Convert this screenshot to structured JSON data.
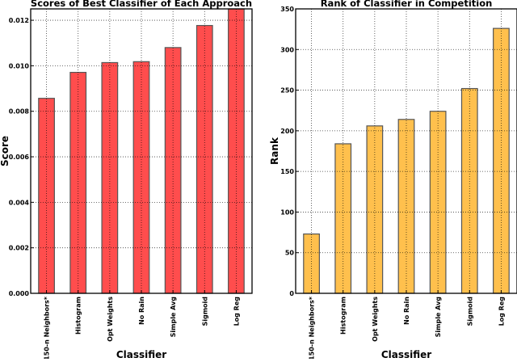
{
  "chart_data": [
    {
      "type": "bar",
      "title": "Scores of Best Classifier of Each Approach",
      "xlabel": "Classifier",
      "ylabel": "Score",
      "categories": [
        "150-n Neighbors*",
        "Histogram",
        "Opt Weights",
        "No Rain",
        "Simple Avg",
        "Sigmoid",
        "Log Reg"
      ],
      "values": [
        0.00857,
        0.00971,
        0.01014,
        0.01018,
        0.0108,
        0.01177,
        0.0126
      ],
      "ylim": [
        0,
        0.0125
      ],
      "yticks": [
        0.0,
        0.002,
        0.004,
        0.006,
        0.008,
        0.01,
        0.012
      ],
      "ytick_labels": [
        "0.000",
        "0.002",
        "0.004",
        "0.006",
        "0.008",
        "0.010",
        "0.012"
      ],
      "grid": true,
      "bar_color": "#ff4d4d",
      "edge_color": "#555555",
      "legend": null
    },
    {
      "type": "bar",
      "title": "Rank of Classifier in Competition",
      "xlabel": "Classifier",
      "ylabel": "Rank",
      "categories": [
        "150-n Neighbors*",
        "Histogram",
        "Opt Weights",
        "No Rain",
        "Simple Avg",
        "Sigmoid",
        "Log Reg"
      ],
      "values": [
        73,
        184,
        206,
        214,
        224,
        252,
        326
      ],
      "ylim": [
        0,
        350
      ],
      "yticks": [
        0,
        50,
        100,
        150,
        200,
        250,
        300,
        350
      ],
      "ytick_labels": [
        "0",
        "50",
        "100",
        "150",
        "200",
        "250",
        "300",
        "350"
      ],
      "grid": true,
      "bar_color": "#ffc04d",
      "edge_color": "#555555",
      "legend": null
    }
  ]
}
